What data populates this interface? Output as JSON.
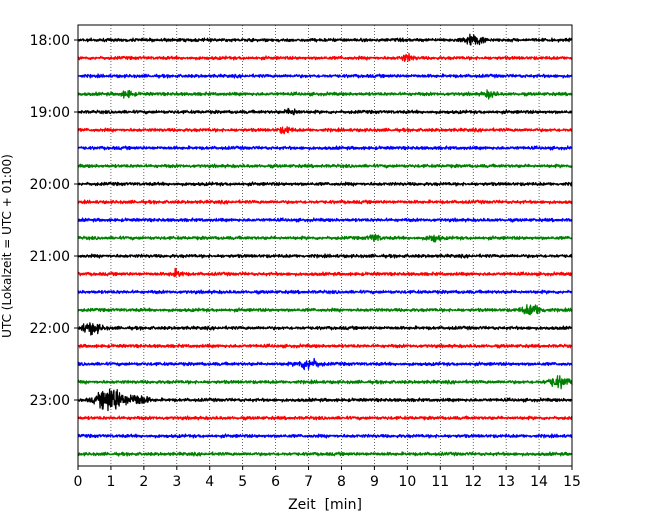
{
  "chart_data": {
    "type": "line",
    "title": "",
    "xlabel": "Zeit  [min]",
    "ylabel": "UTC (Lokalzeit = UTC + 01:00)",
    "xlim": [
      0,
      15
    ],
    "x_ticks": [
      0,
      1,
      2,
      3,
      4,
      5,
      6,
      7,
      8,
      9,
      10,
      11,
      12,
      13,
      14,
      15
    ],
    "x_tick_labels": [
      "0",
      "1",
      "2",
      "3",
      "4",
      "5",
      "6",
      "7",
      "8",
      "9",
      "10",
      "11",
      "12",
      "13",
      "14",
      "15"
    ],
    "y_tick_labels": [
      "18:00",
      "19:00",
      "20:00",
      "21:00",
      "22:00",
      "23:00"
    ],
    "grid": {
      "x": true,
      "y": false,
      "style": "dotted"
    },
    "trace_interval_min": 15,
    "start_time": "18:00",
    "trace_colors": [
      "#000000",
      "#ff0000",
      "#0000ff",
      "#008000"
    ],
    "traces": [
      {
        "start": "18:00",
        "color": "#000000",
        "amplitude": "low",
        "events": [
          {
            "x": 12.0,
            "strength": "medium"
          }
        ]
      },
      {
        "start": "18:15",
        "color": "#ff0000",
        "amplitude": "low",
        "events": [
          {
            "x": 10.0,
            "strength": "low"
          }
        ]
      },
      {
        "start": "18:30",
        "color": "#0000ff",
        "amplitude": "low",
        "events": []
      },
      {
        "start": "18:45",
        "color": "#008000",
        "amplitude": "low",
        "events": [
          {
            "x": 1.5,
            "strength": "low"
          },
          {
            "x": 12.5,
            "strength": "low"
          }
        ]
      },
      {
        "start": "19:00",
        "color": "#000000",
        "amplitude": "low",
        "events": [
          {
            "x": 6.5,
            "strength": "low"
          }
        ]
      },
      {
        "start": "19:15",
        "color": "#ff0000",
        "amplitude": "low",
        "events": [
          {
            "x": 6.3,
            "strength": "low"
          }
        ]
      },
      {
        "start": "19:30",
        "color": "#0000ff",
        "amplitude": "low",
        "events": []
      },
      {
        "start": "19:45",
        "color": "#008000",
        "amplitude": "low",
        "events": []
      },
      {
        "start": "20:00",
        "color": "#000000",
        "amplitude": "low",
        "events": []
      },
      {
        "start": "20:15",
        "color": "#ff0000",
        "amplitude": "low",
        "events": []
      },
      {
        "start": "20:30",
        "color": "#0000ff",
        "amplitude": "low",
        "events": []
      },
      {
        "start": "20:45",
        "color": "#008000",
        "amplitude": "low",
        "events": [
          {
            "x": 9.0,
            "strength": "low"
          },
          {
            "x": 10.8,
            "strength": "low"
          }
        ]
      },
      {
        "start": "21:00",
        "color": "#000000",
        "amplitude": "low",
        "events": []
      },
      {
        "start": "21:15",
        "color": "#ff0000",
        "amplitude": "low",
        "events": [
          {
            "x": 3.0,
            "strength": "low"
          }
        ]
      },
      {
        "start": "21:30",
        "color": "#0000ff",
        "amplitude": "low",
        "events": []
      },
      {
        "start": "21:45",
        "color": "#008000",
        "amplitude": "low",
        "events": [
          {
            "x": 13.8,
            "strength": "medium"
          }
        ]
      },
      {
        "start": "22:00",
        "color": "#000000",
        "amplitude": "low",
        "events": [
          {
            "x": 0.4,
            "strength": "medium"
          }
        ]
      },
      {
        "start": "22:15",
        "color": "#ff0000",
        "amplitude": "low",
        "events": []
      },
      {
        "start": "22:30",
        "color": "#0000ff",
        "amplitude": "low",
        "events": [
          {
            "x": 7.0,
            "strength": "medium"
          }
        ]
      },
      {
        "start": "22:45",
        "color": "#008000",
        "amplitude": "low",
        "events": [
          {
            "x": 14.6,
            "strength": "medium"
          }
        ]
      },
      {
        "start": "23:00",
        "color": "#000000",
        "amplitude": "low",
        "events": [
          {
            "x": 1.0,
            "strength": "high"
          },
          {
            "x": 1.8,
            "strength": "medium"
          }
        ]
      },
      {
        "start": "23:15",
        "color": "#ff0000",
        "amplitude": "low",
        "events": []
      },
      {
        "start": "23:30",
        "color": "#0000ff",
        "amplitude": "low",
        "events": []
      },
      {
        "start": "23:45",
        "color": "#008000",
        "amplitude": "low",
        "events": []
      }
    ]
  }
}
